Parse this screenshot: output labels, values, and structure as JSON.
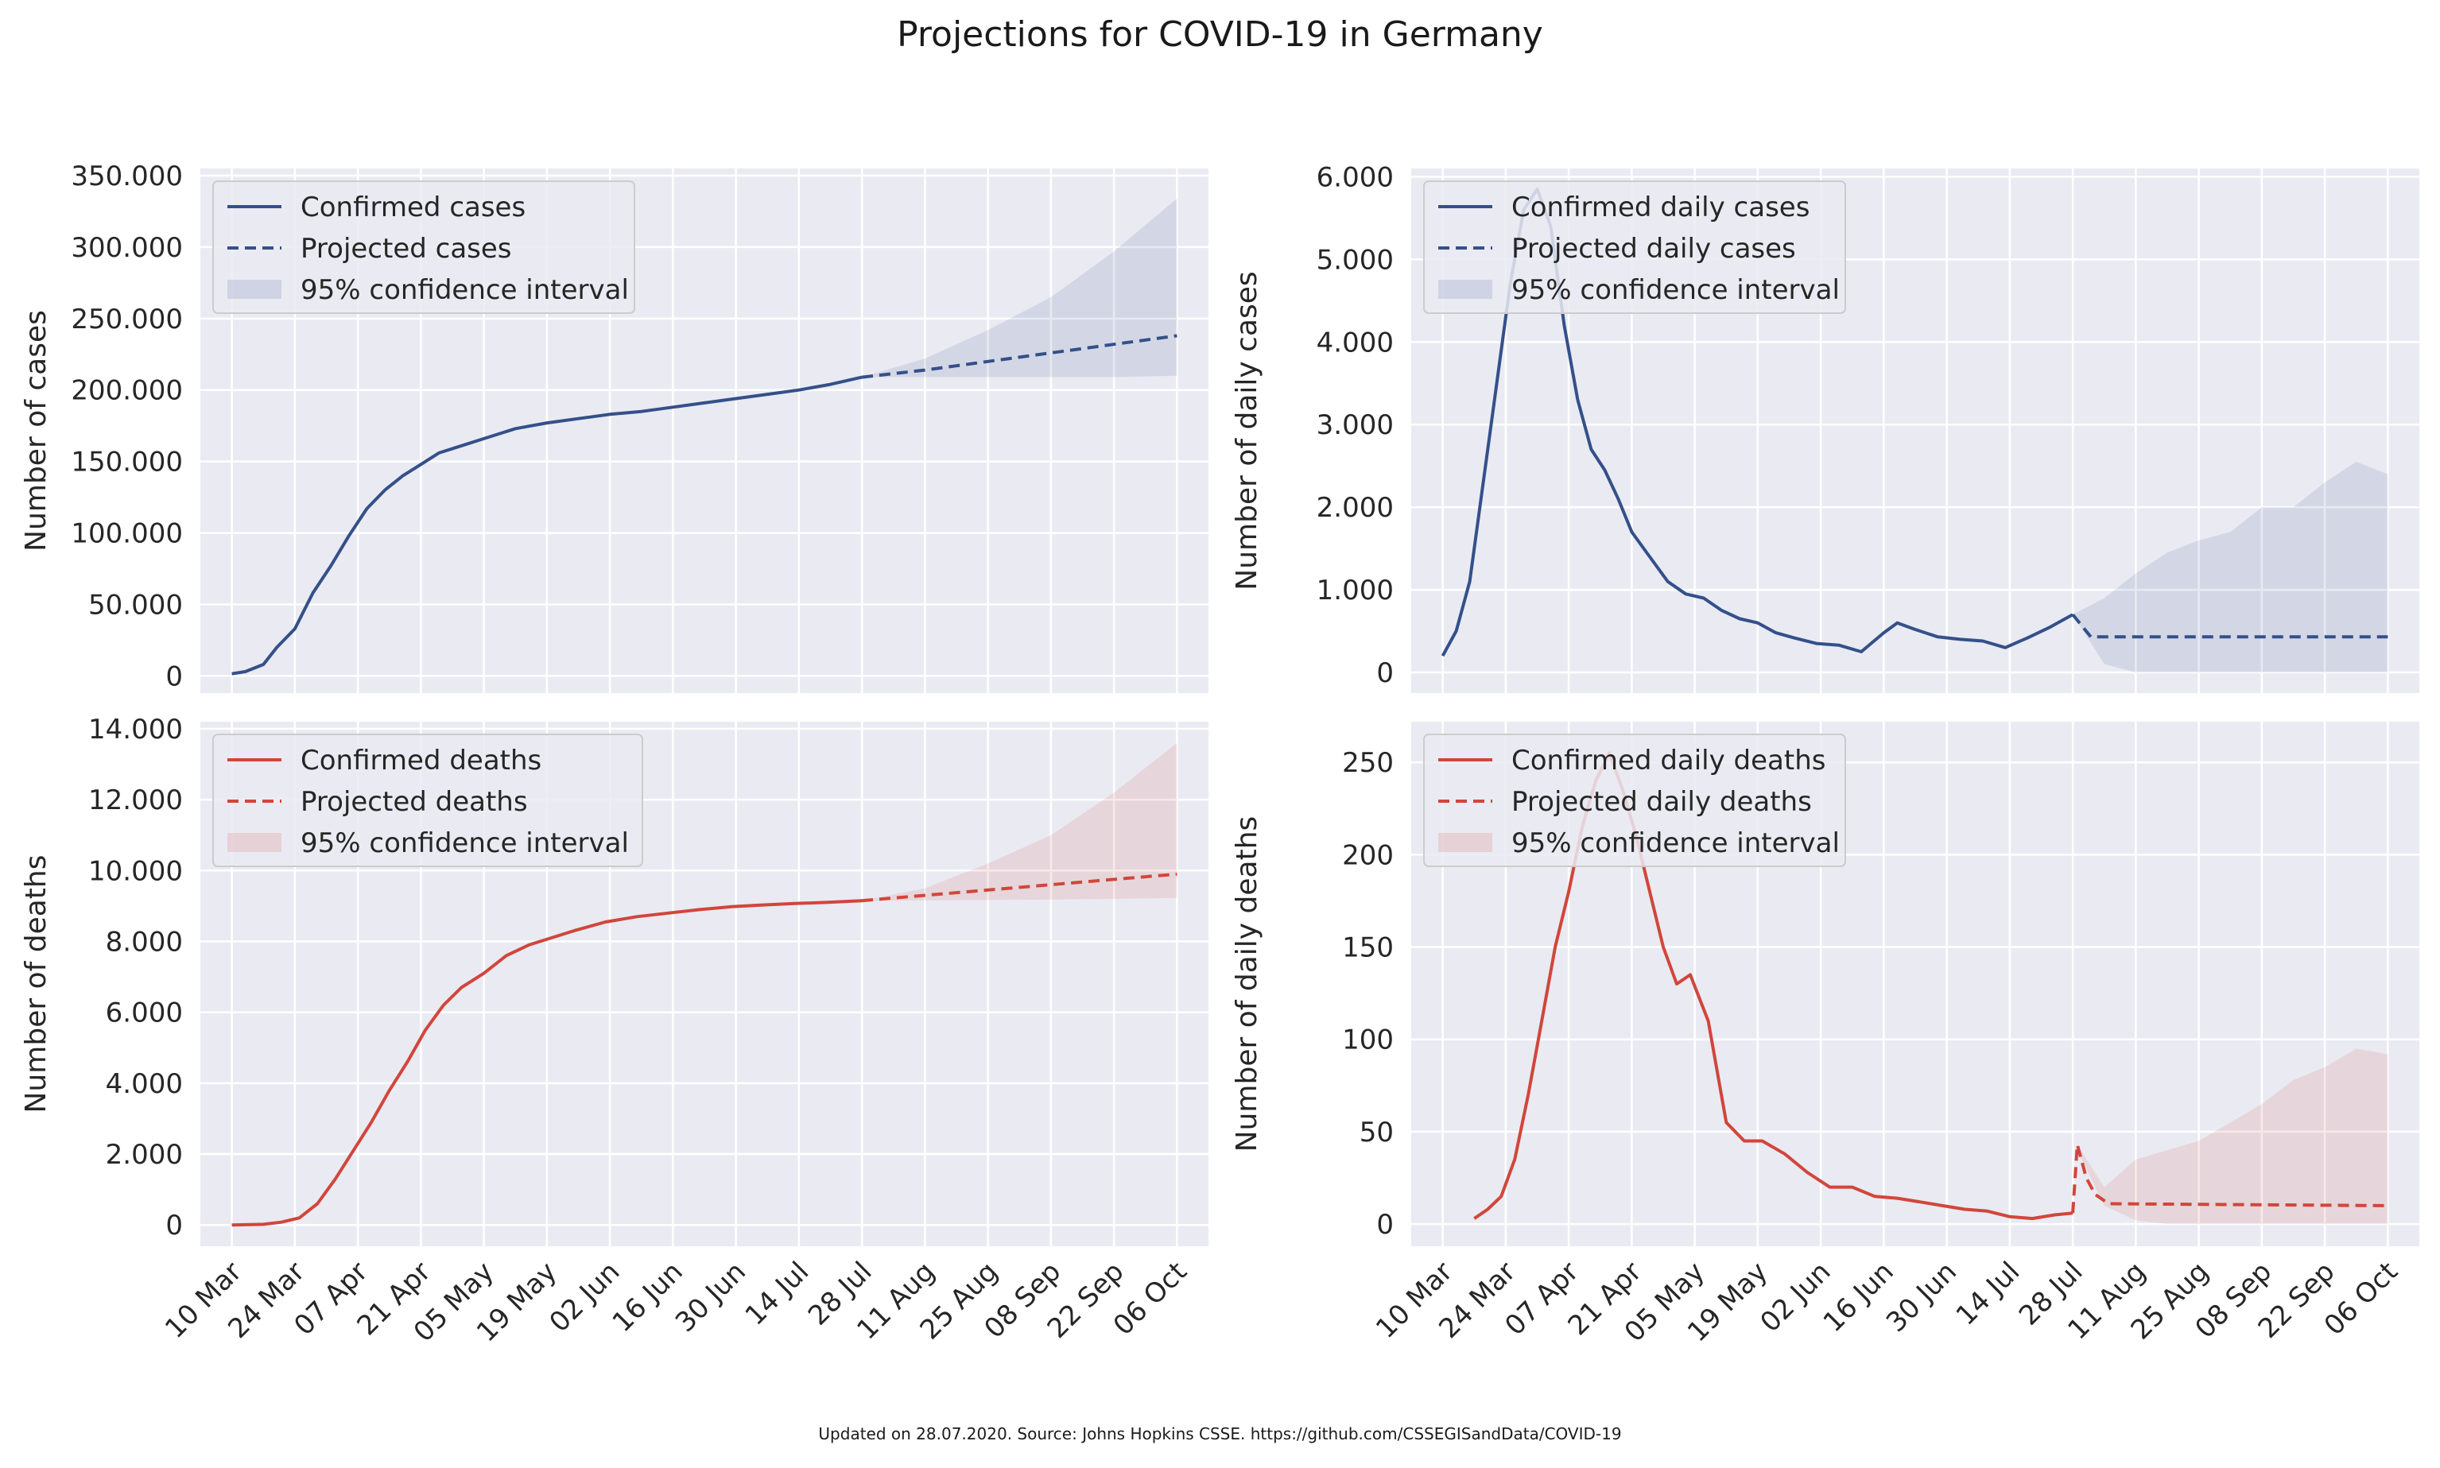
{
  "title": "Projections for COVID-19 in Germany",
  "footer": "Updated on 28.07.2020. Source: Johns Hopkins CSSE. https://github.com/CSSEGISandData/COVID-19",
  "colors": {
    "blue": "#34508a",
    "red": "#d1463b",
    "panel_bg": "#eaeaf2",
    "grid": "#ffffff"
  },
  "chart_data": [
    {
      "type": "line",
      "panel": "top-left",
      "ylabel": "Number of cases",
      "x_is_date": true,
      "xlim": [
        "2020-03-03",
        "2020-10-13"
      ],
      "ylim": [
        -12000,
        355000
      ],
      "yticks": [
        0,
        50000,
        100000,
        150000,
        200000,
        250000,
        300000,
        350000
      ],
      "ytick_labels": [
        "0",
        "50.000",
        "100.000",
        "150.000",
        "200.000",
        "250.000",
        "300.000",
        "350.000"
      ],
      "legend_position": "upper-left",
      "legend": [
        "Confirmed cases",
        "Projected cases",
        "95% confidence interval"
      ],
      "series": [
        {
          "name": "Confirmed cases",
          "style": "solid",
          "color": "#34508a",
          "x": [
            "2020-03-10",
            "2020-03-13",
            "2020-03-17",
            "2020-03-20",
            "2020-03-24",
            "2020-03-28",
            "2020-04-01",
            "2020-04-05",
            "2020-04-09",
            "2020-04-13",
            "2020-04-17",
            "2020-04-21",
            "2020-04-25",
            "2020-04-29",
            "2020-05-05",
            "2020-05-12",
            "2020-05-19",
            "2020-05-26",
            "2020-06-02",
            "2020-06-09",
            "2020-06-16",
            "2020-06-23",
            "2020-06-30",
            "2020-07-07",
            "2020-07-14",
            "2020-07-21",
            "2020-07-28"
          ],
          "values": [
            1500,
            3000,
            8000,
            20000,
            33000,
            58000,
            77000,
            98000,
            117000,
            130000,
            140000,
            148000,
            156000,
            160000,
            166000,
            173000,
            177000,
            180000,
            183000,
            185000,
            188000,
            191000,
            194000,
            197000,
            200000,
            204000,
            209000
          ]
        },
        {
          "name": "Projected cases",
          "style": "dashed",
          "color": "#34508a",
          "x": [
            "2020-07-28",
            "2020-08-11",
            "2020-08-25",
            "2020-09-08",
            "2020-09-22",
            "2020-10-06"
          ],
          "values": [
            209000,
            214000,
            220000,
            226000,
            232000,
            238000
          ]
        },
        {
          "name": "95% confidence interval",
          "style": "band",
          "color": "#34508a",
          "x": [
            "2020-07-28",
            "2020-08-11",
            "2020-08-25",
            "2020-09-08",
            "2020-09-22",
            "2020-10-06"
          ],
          "lower": [
            209000,
            209000,
            209000,
            209000,
            209000,
            210000
          ],
          "upper": [
            209000,
            222000,
            242000,
            265000,
            297000,
            334000
          ]
        }
      ]
    },
    {
      "type": "line",
      "panel": "top-right",
      "ylabel": "Number of daily cases",
      "x_is_date": true,
      "xlim": [
        "2020-03-03",
        "2020-10-13"
      ],
      "ylim": [
        -250,
        6100
      ],
      "yticks": [
        0,
        1000,
        2000,
        3000,
        4000,
        5000,
        6000
      ],
      "ytick_labels": [
        "0",
        "1.000",
        "2.000",
        "3.000",
        "4.000",
        "5.000",
        "6.000"
      ],
      "legend_position": "upper-left",
      "legend": [
        "Confirmed daily cases",
        "Projected daily cases",
        "95% confidence interval"
      ],
      "series": [
        {
          "name": "Confirmed daily cases",
          "style": "solid",
          "color": "#34508a",
          "x": [
            "2020-03-10",
            "2020-03-13",
            "2020-03-16",
            "2020-03-19",
            "2020-03-22",
            "2020-03-25",
            "2020-03-28",
            "2020-03-31",
            "2020-04-03",
            "2020-04-06",
            "2020-04-09",
            "2020-04-12",
            "2020-04-15",
            "2020-04-18",
            "2020-04-21",
            "2020-04-25",
            "2020-04-29",
            "2020-05-03",
            "2020-05-07",
            "2020-05-11",
            "2020-05-15",
            "2020-05-19",
            "2020-05-23",
            "2020-05-27",
            "2020-06-01",
            "2020-06-06",
            "2020-06-11",
            "2020-06-16",
            "2020-06-19",
            "2020-06-23",
            "2020-06-28",
            "2020-07-03",
            "2020-07-08",
            "2020-07-13",
            "2020-07-18",
            "2020-07-23",
            "2020-07-28"
          ],
          "values": [
            200,
            500,
            1100,
            2300,
            3500,
            4700,
            5600,
            5850,
            5400,
            4200,
            3300,
            2700,
            2450,
            2100,
            1700,
            1400,
            1100,
            950,
            900,
            750,
            650,
            600,
            480,
            420,
            350,
            330,
            250,
            480,
            600,
            520,
            430,
            400,
            380,
            300,
            420,
            550,
            700
          ]
        },
        {
          "name": "Projected daily cases",
          "style": "dashed",
          "color": "#34508a",
          "x": [
            "2020-07-28",
            "2020-08-01",
            "2020-10-06"
          ],
          "values": [
            700,
            430,
            430
          ]
        },
        {
          "name": "95% confidence interval",
          "style": "band",
          "color": "#34508a",
          "x": [
            "2020-07-28",
            "2020-08-04",
            "2020-08-11",
            "2020-08-18",
            "2020-08-25",
            "2020-09-01",
            "2020-09-08",
            "2020-09-15",
            "2020-09-22",
            "2020-09-29",
            "2020-10-06"
          ],
          "lower": [
            700,
            100,
            0,
            0,
            0,
            0,
            0,
            0,
            0,
            0,
            0
          ],
          "upper": [
            700,
            900,
            1200,
            1450,
            1600,
            1700,
            2000,
            2000,
            2300,
            2550,
            2400
          ]
        }
      ]
    },
    {
      "type": "line",
      "panel": "bottom-left",
      "ylabel": "Number of deaths",
      "x_is_date": true,
      "xlim": [
        "2020-03-03",
        "2020-10-13"
      ],
      "ylim": [
        -600,
        14200
      ],
      "yticks": [
        0,
        2000,
        4000,
        6000,
        8000,
        10000,
        12000,
        14000
      ],
      "ytick_labels": [
        "0",
        "2.000",
        "4.000",
        "6.000",
        "8.000",
        "10.000",
        "12.000",
        "14.000"
      ],
      "xtick_labels": [
        "10 Mar",
        "24 Mar",
        "07 Apr",
        "21 Apr",
        "05 May",
        "19 May",
        "02 Jun",
        "16 Jun",
        "30 Jun",
        "14 Jul",
        "28 Jul",
        "11 Aug",
        "25 Aug",
        "08 Sep",
        "22 Sep",
        "06 Oct"
      ],
      "legend_position": "upper-left",
      "legend": [
        "Confirmed deaths",
        "Projected deaths",
        "95% confidence interval"
      ],
      "series": [
        {
          "name": "Confirmed deaths",
          "style": "solid",
          "color": "#d1463b",
          "x": [
            "2020-03-10",
            "2020-03-17",
            "2020-03-21",
            "2020-03-25",
            "2020-03-29",
            "2020-04-02",
            "2020-04-06",
            "2020-04-10",
            "2020-04-14",
            "2020-04-18",
            "2020-04-22",
            "2020-04-26",
            "2020-04-30",
            "2020-05-05",
            "2020-05-10",
            "2020-05-15",
            "2020-05-20",
            "2020-05-25",
            "2020-06-01",
            "2020-06-08",
            "2020-06-15",
            "2020-06-22",
            "2020-06-29",
            "2020-07-06",
            "2020-07-13",
            "2020-07-20",
            "2020-07-28"
          ],
          "values": [
            0,
            20,
            80,
            200,
            600,
            1300,
            2100,
            2900,
            3800,
            4600,
            5500,
            6200,
            6700,
            7100,
            7600,
            7900,
            8100,
            8300,
            8550,
            8700,
            8800,
            8900,
            8980,
            9030,
            9070,
            9100,
            9150
          ]
        },
        {
          "name": "Projected deaths",
          "style": "dashed",
          "color": "#d1463b",
          "x": [
            "2020-07-28",
            "2020-08-11",
            "2020-08-25",
            "2020-09-08",
            "2020-09-22",
            "2020-10-06"
          ],
          "values": [
            9150,
            9300,
            9450,
            9600,
            9750,
            9900
          ]
        },
        {
          "name": "95% confidence interval",
          "style": "band",
          "color": "#d1463b",
          "x": [
            "2020-07-28",
            "2020-08-11",
            "2020-08-25",
            "2020-09-08",
            "2020-09-22",
            "2020-10-06"
          ],
          "lower": [
            9150,
            9160,
            9170,
            9180,
            9200,
            9230
          ],
          "upper": [
            9150,
            9500,
            10200,
            11000,
            12200,
            13600
          ]
        }
      ]
    },
    {
      "type": "line",
      "panel": "bottom-right",
      "ylabel": "Number of daily deaths",
      "x_is_date": true,
      "xlim": [
        "2020-03-03",
        "2020-10-13"
      ],
      "ylim": [
        -12,
        272
      ],
      "yticks": [
        0,
        50,
        100,
        150,
        200,
        250
      ],
      "ytick_labels": [
        "0",
        "50",
        "100",
        "150",
        "200",
        "250"
      ],
      "xtick_labels": [
        "10 Mar",
        "24 Mar",
        "07 Apr",
        "21 Apr",
        "05 May",
        "19 May",
        "02 Jun",
        "16 Jun",
        "30 Jun",
        "14 Jul",
        "28 Jul",
        "11 Aug",
        "25 Aug",
        "08 Sep",
        "22 Sep",
        "06 Oct"
      ],
      "legend_position": "upper-left",
      "legend": [
        "Confirmed daily deaths",
        "Projected daily deaths",
        "95% confidence interval"
      ],
      "series": [
        {
          "name": "Confirmed daily deaths",
          "style": "solid",
          "color": "#d1463b",
          "x": [
            "2020-03-17",
            "2020-03-20",
            "2020-03-23",
            "2020-03-26",
            "2020-03-29",
            "2020-04-01",
            "2020-04-04",
            "2020-04-07",
            "2020-04-10",
            "2020-04-13",
            "2020-04-16",
            "2020-04-19",
            "2020-04-22",
            "2020-04-25",
            "2020-04-28",
            "2020-05-01",
            "2020-05-04",
            "2020-05-08",
            "2020-05-12",
            "2020-05-16",
            "2020-05-20",
            "2020-05-25",
            "2020-05-30",
            "2020-06-04",
            "2020-06-09",
            "2020-06-14",
            "2020-06-19",
            "2020-06-24",
            "2020-06-29",
            "2020-07-04",
            "2020-07-09",
            "2020-07-14",
            "2020-07-19",
            "2020-07-24",
            "2020-07-28"
          ],
          "values": [
            3,
            8,
            15,
            35,
            70,
            110,
            150,
            180,
            215,
            240,
            255,
            235,
            210,
            180,
            150,
            130,
            135,
            110,
            55,
            45,
            45,
            38,
            28,
            20,
            20,
            15,
            14,
            12,
            10,
            8,
            7,
            4,
            3,
            5,
            6
          ]
        },
        {
          "name": "Projected daily deaths",
          "style": "dashed",
          "color": "#d1463b",
          "x": [
            "2020-07-28",
            "2020-07-29",
            "2020-07-31",
            "2020-08-02",
            "2020-08-05",
            "2020-10-06"
          ],
          "values": [
            6,
            43,
            25,
            16,
            11,
            10
          ]
        },
        {
          "name": "95% confidence interval",
          "style": "band",
          "color": "#d1463b",
          "x": [
            "2020-07-29",
            "2020-08-04",
            "2020-08-11",
            "2020-08-18",
            "2020-08-25",
            "2020-09-01",
            "2020-09-08",
            "2020-09-15",
            "2020-09-22",
            "2020-09-29",
            "2020-10-06"
          ],
          "lower": [
            40,
            10,
            2,
            0,
            0,
            0,
            0,
            0,
            0,
            0,
            0
          ],
          "upper": [
            43,
            20,
            35,
            40,
            45,
            55,
            65,
            78,
            85,
            95,
            92
          ]
        }
      ]
    }
  ]
}
